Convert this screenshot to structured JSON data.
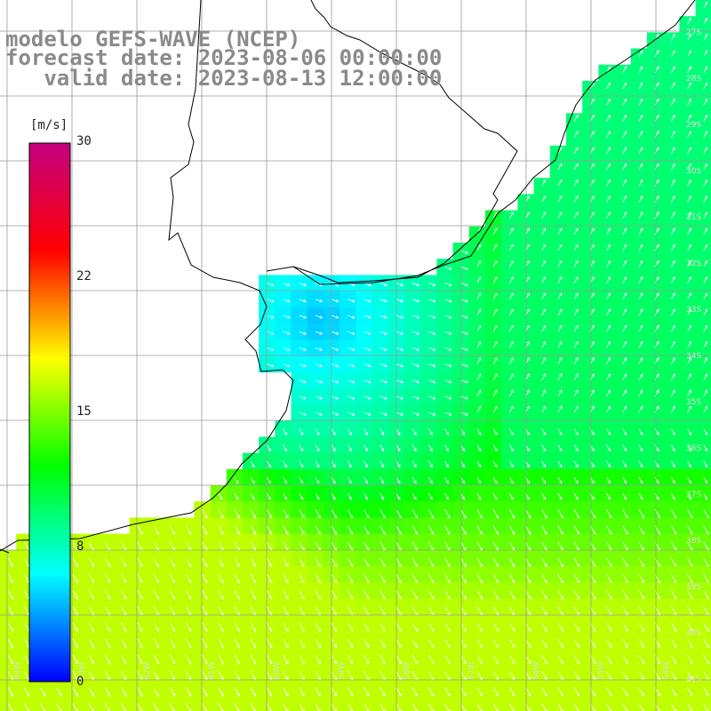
{
  "title_lines": [
    "modelo GEFS-WAVE (NCEP)",
    "forecast date: 2023-08-06 00:00:00",
    "   valid date: 2023-08-13 12:00:00"
  ],
  "colorbar": {
    "unit": "[m/s]",
    "ticks": [
      "30",
      "22",
      "15",
      "8",
      "0"
    ],
    "stops": [
      "#0000ff",
      "#00ffff",
      "#00ff00",
      "#ffff00",
      "#ff0000",
      "#c40080"
    ]
  },
  "lat_labels": [
    "27S",
    "28S",
    "29S",
    "30S",
    "31S",
    "32S",
    "33S",
    "34S",
    "35S",
    "36S",
    "37S",
    "38S",
    "39S",
    "40S",
    "41S"
  ],
  "lon_labels": [
    "64W",
    "63W",
    "62W",
    "61W",
    "60W",
    "59W",
    "58W",
    "57W",
    "56W",
    "55W",
    "54W",
    "53W",
    "52W",
    "51W"
  ],
  "colors": {
    "land": "#ffffff",
    "coast": "#000000",
    "grid": "#9a9a9a",
    "arrow": "#ffffff"
  }
}
